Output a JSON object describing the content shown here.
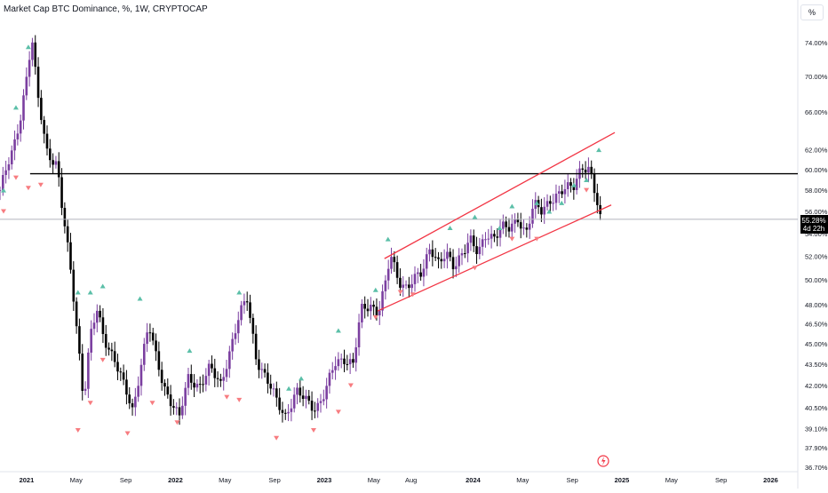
{
  "header": {
    "title": "Market Cap BTC Dominance, %, 1W, CRYPTOCAP",
    "percent_button": "%"
  },
  "price_badge": {
    "value": "55.28%",
    "countdown": "4d 22h"
  },
  "colors": {
    "bull_candle": "#7b3fa0",
    "bear_candle": "#000000",
    "channel": "#f23645",
    "resistance": "#000000",
    "marker_up": "#5bbfa8",
    "marker_down": "#f77c80",
    "price_line": "#b2b5be"
  },
  "chart_data": {
    "type": "candlestick",
    "title": "Market Cap BTC Dominance, %, 1W, CRYPTOCAP",
    "ylim": [
      36.7,
      77.0
    ],
    "y_scale": "log",
    "y_ticks": [
      "36.70%",
      "37.90%",
      "39.10%",
      "40.50%",
      "42.00%",
      "43.50%",
      "45.00%",
      "46.50%",
      "48.00%",
      "50.00%",
      "52.00%",
      "54.00%",
      "56.00%",
      "58.00%",
      "60.00%",
      "62.00%",
      "66.00%",
      "70.00%",
      "74.00%"
    ],
    "x_ticks": [
      "2021",
      "May",
      "Sep",
      "2022",
      "May",
      "Sep",
      "2023",
      "May",
      "Aug",
      "2024",
      "May",
      "Sep",
      "2025",
      "May",
      "Sep",
      "2026"
    ],
    "last_value": 55.28,
    "resistance_level": 59.6,
    "channel_upper": [
      {
        "date": "2023-06",
        "value": 51.8
      },
      {
        "date": "2024-12",
        "value": 63.8
      }
    ],
    "channel_lower": [
      {
        "date": "2023-05",
        "value": 47.5
      },
      {
        "date": "2024-12",
        "value": 56.6
      }
    ],
    "markers_up": [
      {
        "date": "2020-11",
        "value": 58.0
      },
      {
        "date": "2020-12",
        "value": 66.5
      },
      {
        "date": "2021-01",
        "value": 73.5
      },
      {
        "date": "2021-05",
        "value": 49.0
      },
      {
        "date": "2021-06",
        "value": 49.0
      },
      {
        "date": "2021-07",
        "value": 49.5
      },
      {
        "date": "2021-10",
        "value": 48.5
      },
      {
        "date": "2022-02",
        "value": 44.5
      },
      {
        "date": "2022-06",
        "value": 49.0
      },
      {
        "date": "2022-10",
        "value": 41.8
      },
      {
        "date": "2022-11",
        "value": 42.5
      },
      {
        "date": "2023-02",
        "value": 46.0
      },
      {
        "date": "2023-05",
        "value": 49.2
      },
      {
        "date": "2023-06",
        "value": 53.5
      },
      {
        "date": "2023-11",
        "value": 54.5
      },
      {
        "date": "2024-01",
        "value": 55.5
      },
      {
        "date": "2024-03",
        "value": 54.5
      },
      {
        "date": "2024-04",
        "value": 56.5
      },
      {
        "date": "2024-06",
        "value": 56.8
      },
      {
        "date": "2024-07",
        "value": 56.0
      },
      {
        "date": "2024-08",
        "value": 56.8
      },
      {
        "date": "2024-09",
        "value": 58.5
      },
      {
        "date": "2024-10",
        "value": 59.0
      },
      {
        "date": "2024-11",
        "value": 62.0
      }
    ],
    "markers_down": [
      {
        "date": "2020-11",
        "value": 56.0
      },
      {
        "date": "2020-12",
        "value": 59.2
      },
      {
        "date": "2021-01",
        "value": 58.2
      },
      {
        "date": "2021-02",
        "value": 58.5
      },
      {
        "date": "2021-05",
        "value": 39.0
      },
      {
        "date": "2021-06",
        "value": 40.8
      },
      {
        "date": "2021-07",
        "value": 43.8
      },
      {
        "date": "2021-09",
        "value": 38.8
      },
      {
        "date": "2021-11",
        "value": 40.8
      },
      {
        "date": "2022-01",
        "value": 39.5
      },
      {
        "date": "2022-05",
        "value": 41.2
      },
      {
        "date": "2022-06",
        "value": 41.0
      },
      {
        "date": "2022-09",
        "value": 38.5
      },
      {
        "date": "2022-12",
        "value": 39.0
      },
      {
        "date": "2023-02",
        "value": 40.2
      },
      {
        "date": "2023-03",
        "value": 42.0
      },
      {
        "date": "2023-05",
        "value": 47.0
      },
      {
        "date": "2023-07",
        "value": 49.0
      },
      {
        "date": "2023-08",
        "value": 48.8
      },
      {
        "date": "2024-01",
        "value": 51.0
      },
      {
        "date": "2024-04",
        "value": 53.5
      },
      {
        "date": "2024-06",
        "value": 53.5
      },
      {
        "date": "2024-10",
        "value": 58.0
      }
    ]
  }
}
